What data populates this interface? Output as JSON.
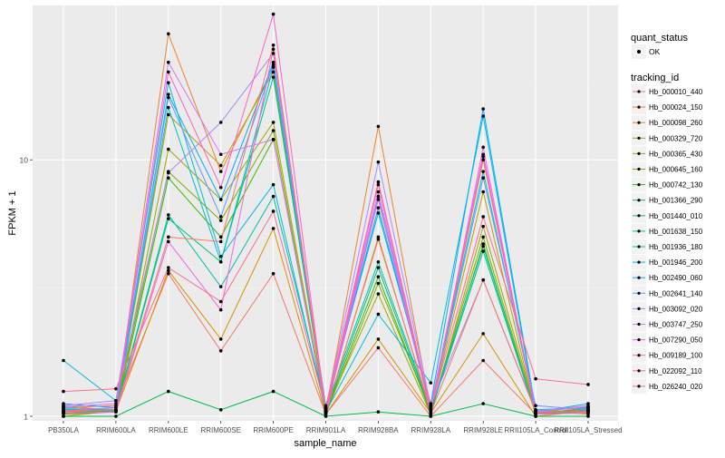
{
  "chart_data": {
    "type": "line",
    "xlabel": "sample_name",
    "ylabel": "FPKM + 1",
    "y_scale": "log",
    "ylim": [
      0.96,
      40
    ],
    "y_ticks": [
      {
        "value": 1,
        "label": "1"
      },
      {
        "value": 10,
        "label": "10"
      }
    ],
    "categories": [
      "PB350LA",
      "RRIM600LA",
      "RRIM600LE",
      "RRIM600SE",
      "RRIM600PE",
      "RRIM901LA",
      "RRIM928BA",
      "RRIM928LA",
      "RRIM928LE",
      "RRII105LA_Control",
      "RRII105LA_Stressed"
    ],
    "grid": true,
    "background": "#ebebeb",
    "legend_position": "right",
    "legend": {
      "shape_title": "quant_status",
      "shape_entries": [
        "OK"
      ],
      "color_title": "tracking_id"
    },
    "series": [
      {
        "name": "Hb_000010_440",
        "color": "#F8766D",
        "values": [
          1.08,
          1.1,
          3.6,
          1.8,
          3.6,
          1.02,
          1.85,
          1.0,
          1.65,
          1.02,
          1.05
        ]
      },
      {
        "name": "Hb_000024_150",
        "color": "#EA8331",
        "values": [
          1.05,
          1.05,
          31.0,
          9.0,
          23.0,
          1.05,
          13.5,
          1.05,
          10.0,
          1.05,
          1.02
        ]
      },
      {
        "name": "Hb_000098_260",
        "color": "#D89000",
        "values": [
          1.0,
          1.05,
          3.7,
          2.0,
          5.4,
          1.02,
          2.0,
          1.03,
          2.1,
          1.0,
          1.05
        ]
      },
      {
        "name": "Hb_000329_720",
        "color": "#C09B00",
        "values": [
          1.1,
          1.05,
          15.0,
          9.5,
          22.0,
          1.03,
          4.9,
          1.05,
          7.5,
          1.02,
          1.08
        ]
      },
      {
        "name": "Hb_000365_430",
        "color": "#A3A500",
        "values": [
          1.03,
          1.05,
          11.0,
          7.0,
          14.0,
          1.05,
          3.0,
          1.02,
          5.5,
          1.05,
          1.05
        ]
      },
      {
        "name": "Hb_000645_160",
        "color": "#7CAE00",
        "values": [
          1.05,
          1.08,
          9.0,
          5.8,
          13.0,
          1.02,
          3.3,
          1.05,
          5.0,
          1.03,
          1.07
        ]
      },
      {
        "name": "Hb_000742_130",
        "color": "#39B600",
        "values": [
          1.02,
          1.04,
          8.5,
          5.0,
          12.0,
          1.04,
          3.5,
          1.03,
          4.7,
          1.02,
          1.06
        ]
      },
      {
        "name": "Hb_001366_290",
        "color": "#00BB4E",
        "values": [
          1.0,
          1.0,
          1.25,
          1.06,
          1.25,
          1.0,
          1.04,
          1.0,
          1.12,
          1.0,
          1.0
        ]
      },
      {
        "name": "Hb_001440_010",
        "color": "#00BF7D",
        "values": [
          1.04,
          1.05,
          5.9,
          4.0,
          21.0,
          1.05,
          3.8,
          1.04,
          4.4,
          1.02,
          1.04
        ]
      },
      {
        "name": "Hb_001638_150",
        "color": "#00C1A3",
        "values": [
          1.06,
          1.06,
          6.1,
          3.2,
          7.2,
          1.08,
          4.0,
          1.06,
          4.6,
          1.03,
          1.05
        ]
      },
      {
        "name": "Hb_001936_180",
        "color": "#00BFC4",
        "values": [
          1.07,
          1.05,
          16.0,
          4.0,
          23.0,
          1.06,
          6.5,
          1.08,
          9.0,
          1.05,
          1.08
        ]
      },
      {
        "name": "Hb_001946_200",
        "color": "#00B9E3",
        "values": [
          1.65,
          1.15,
          20.0,
          4.2,
          8.0,
          1.04,
          2.5,
          1.35,
          14.8,
          1.04,
          1.12
        ]
      },
      {
        "name": "Hb_002490_060",
        "color": "#00ADFA",
        "values": [
          1.12,
          1.08,
          18.0,
          7.0,
          24.0,
          1.1,
          6.2,
          1.12,
          15.8,
          1.06,
          1.08
        ]
      },
      {
        "name": "Hb_002641_140",
        "color": "#619CFF",
        "values": [
          1.08,
          1.06,
          17.5,
          6.0,
          23.5,
          1.05,
          7.2,
          1.07,
          8.5,
          1.1,
          1.06
        ]
      },
      {
        "name": "Hb_003092_020",
        "color": "#AE87FF",
        "values": [
          1.1,
          1.15,
          8.9,
          14.0,
          26.0,
          1.08,
          9.8,
          1.1,
          3.4,
          1.05,
          1.1
        ]
      },
      {
        "name": "Hb_003747_250",
        "color": "#DB72FB",
        "values": [
          1.09,
          1.12,
          24.0,
          10.5,
          12.0,
          1.06,
          7.5,
          1.09,
          10.5,
          1.04,
          1.09
        ]
      },
      {
        "name": "Hb_007290_050",
        "color": "#F564E3",
        "values": [
          1.03,
          1.04,
          4.8,
          2.6,
          27.0,
          1.03,
          7.0,
          1.04,
          11.2,
          1.02,
          1.03
        ]
      },
      {
        "name": "Hb_009189_100",
        "color": "#FF61C3",
        "values": [
          1.05,
          1.08,
          22.0,
          7.8,
          37.0,
          1.04,
          8.0,
          1.06,
          10.3,
          1.03,
          1.05
        ]
      },
      {
        "name": "Hb_022092_110",
        "color": "#FF6C91",
        "values": [
          1.25,
          1.28,
          3.8,
          2.8,
          6.3,
          1.07,
          8.2,
          1.07,
          6.0,
          1.4,
          1.33
        ]
      },
      {
        "name": "Hb_026240_020",
        "color": "#F8766D",
        "values": [
          1.04,
          1.06,
          5.0,
          4.8,
          28.0,
          1.02,
          5.0,
          1.03,
          3.4,
          1.04,
          1.04
        ]
      }
    ]
  }
}
